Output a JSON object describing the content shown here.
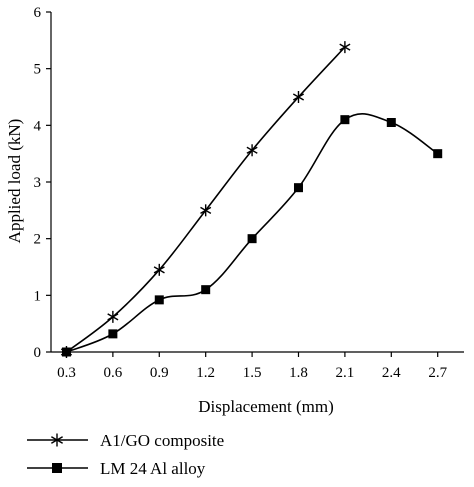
{
  "chart_data": {
    "type": "line",
    "xlabel": "Displacement (mm)",
    "ylabel": "Applied load (kN)",
    "xlim": [
      0.2,
      2.87
    ],
    "ylim": [
      0,
      6
    ],
    "x_ticks": [
      "0.3",
      "0.6",
      "0.9",
      "1.2",
      "1.5",
      "1.8",
      "2.1",
      "2.4",
      "2.7"
    ],
    "y_ticks": [
      "0",
      "1",
      "2",
      "3",
      "4",
      "5",
      "6"
    ],
    "grid": false,
    "legend_position": "bottom-left",
    "series": [
      {
        "name": "A1/GO composite",
        "marker": "star",
        "color": "#000000",
        "x": [
          0.3,
          0.6,
          0.9,
          1.2,
          1.5,
          1.8,
          2.1
        ],
        "y": [
          0.0,
          0.62,
          1.45,
          2.5,
          3.56,
          4.5,
          5.38
        ]
      },
      {
        "name": "LM 24 Al alloy",
        "marker": "square",
        "color": "#000000",
        "x": [
          0.3,
          0.6,
          0.9,
          1.2,
          1.5,
          1.8,
          2.1,
          2.4,
          2.7
        ],
        "y": [
          0.0,
          0.32,
          0.92,
          1.1,
          2.0,
          2.9,
          4.1,
          4.05,
          3.5
        ]
      }
    ]
  }
}
